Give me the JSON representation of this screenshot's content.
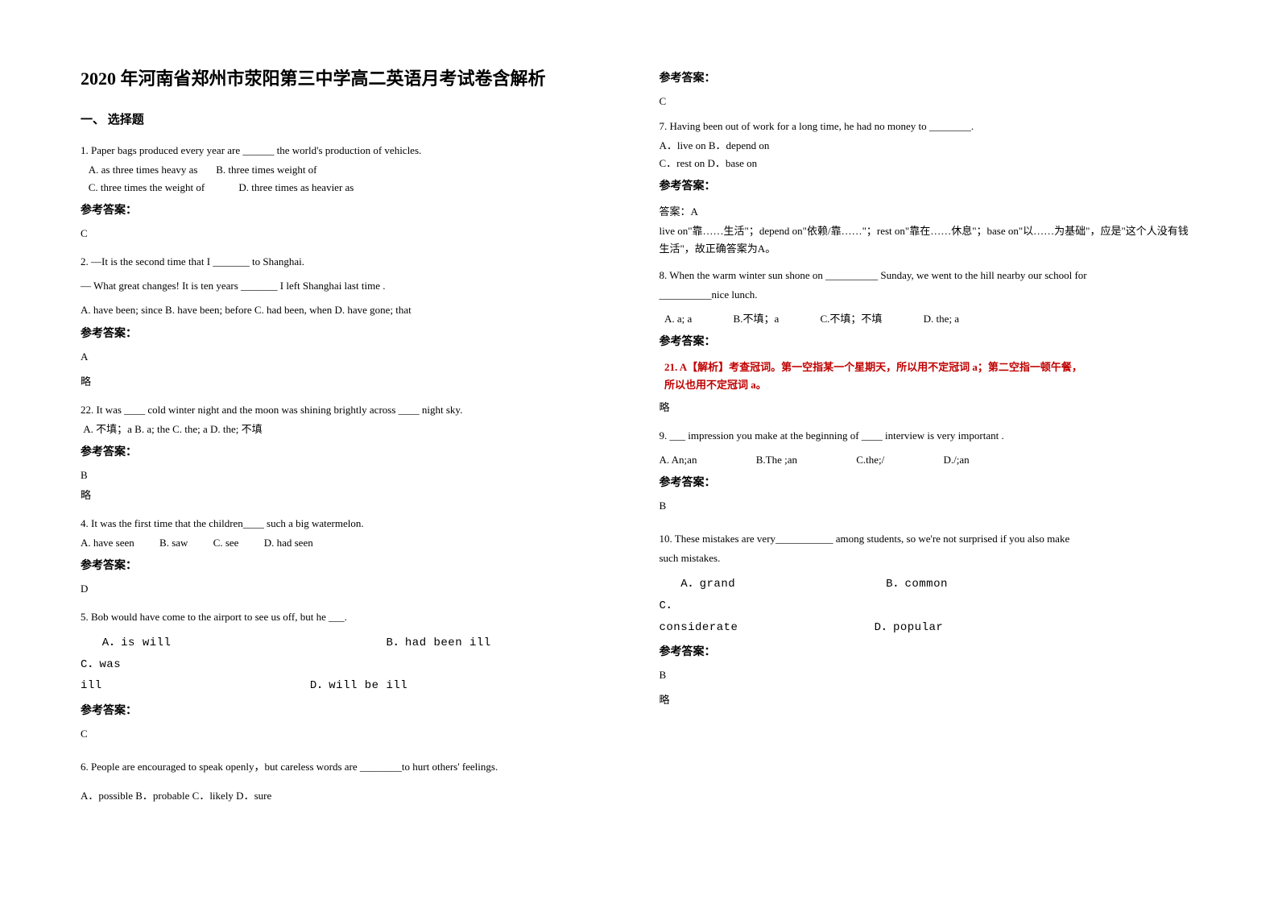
{
  "title": "2020 年河南省郑州市荥阳第三中学高二英语月考试卷含解析",
  "section1": "一、 选择题",
  "answerLabel": "参考答案：",
  "略": "略",
  "q1": {
    "text": "1. Paper bags produced every year are ______ the world's production of vehicles.",
    "optA": "A. as three times heavy as",
    "optB": "B. three times weight of",
    "optC": "C. three times the weight of",
    "optD": "D. three times as heavier as",
    "ans": "C"
  },
  "q2": {
    "line1": "2. —It is the second time that I _______ to Shanghai.",
    "line2": "— What great changes! It is ten years _______ I left Shanghai last time .",
    "opts": "A. have been; since   B. have been; before   C. had been, when   D. have gone; that",
    "ans": "A"
  },
  "q22": {
    "text": "22. It was ____ cold winter night and the moon was shining brightly across ____ night sky.",
    "opts": "A. 不填；a   B. a; the   C. the; a   D. the; 不填",
    "ans": "B"
  },
  "q4": {
    "text": "4. It was the first time that the children____ such a big watermelon.",
    "optA": "A. have seen",
    "optB": "B. saw",
    "optC": "C. see",
    "optD": "D. had seen",
    "ans": "D"
  },
  "q5": {
    "text": "5. Bob would have come to the airport to see us off, but he ___.",
    "line2a": "A．is will",
    "line2b": "B．had been ill",
    "line2c": "C．was",
    "line3a": "ill",
    "line3b": "D．will be ill",
    "ans": "C"
  },
  "q6": {
    "text": "6. People are encouraged to speak openly，but careless words are ________to hurt others' feelings.",
    "opts": "A．possible B．probable     C．likely            D．sure",
    "ans": "C"
  },
  "q7": {
    "text": "7. Having been out of work for a long time, he had no money to ________.",
    "line1": "A．live on      B．depend on",
    "line2": "C．rest on     D．base on",
    "ansPrefix": "答案：A",
    "explain": "live on\"靠……生活\"；depend on\"依赖/靠……\"；rest on\"靠在……休息\"；base on\"以……为基础\"，应是\"这个人没有钱生活\"，故正确答案为A。"
  },
  "q8": {
    "text1": "8. When the warm winter sun shone on __________ Sunday, we went to the hill nearby our school for",
    "text2": "__________nice lunch.",
    "optA": "A. a; a",
    "optB": "B.不填；a",
    "optC": "C.不填；不填",
    "optD": "D. the; a",
    "explainTitle": "21. A【解析】考查冠词。第一空指某一个星期天，所以用不定冠词 a；第二空指一顿午餐，",
    "explainBody": "所以也用不定冠词 a。"
  },
  "q9": {
    "text": "9. ___ impression you make at the beginning of  ____ interview is very important .",
    "optA": "A. An;an",
    "optB": "B.The ;an",
    "optC": "C.the;/",
    "optD": "D./;an",
    "ans": "B"
  },
  "q10": {
    "text1": "10. These mistakes are very___________ among students, so we're not surprised if you also make",
    "text2": "such mistakes.",
    "line1a": "A．grand",
    "line1b": "B．common",
    "line1c": "C．",
    "line2a": "considerate",
    "line2b": "D．popular",
    "ans": "B"
  }
}
